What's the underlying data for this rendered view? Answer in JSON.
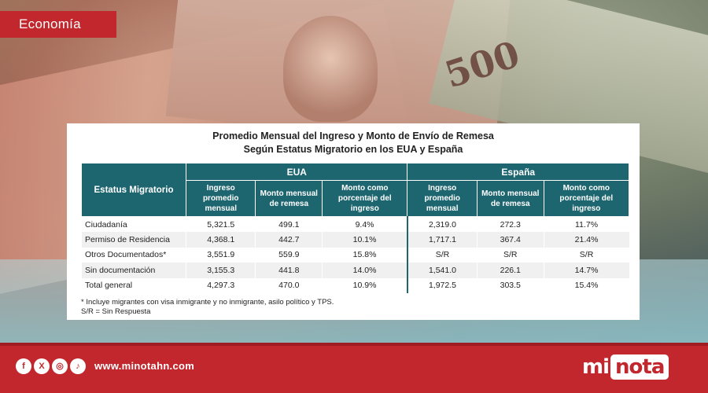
{
  "section_badge": "Economía",
  "card": {
    "title_line1": "Promedio Mensual del Ingreso y Monto de Envío de Remesa",
    "title_line2": "Según Estatus Migratorio en los EUA y España",
    "status_header": "Estatus Migratorio",
    "group_eua": "EUA",
    "group_espana": "España",
    "col_ingreso": "Ingreso promedio mensual",
    "col_monto": "Monto mensual de remesa",
    "col_porcentaje": "Monto como porcentaje del ingreso",
    "rows": [
      {
        "label": "Ciudadanía",
        "eua_ing": "5,321.5",
        "eua_mon": "499.1",
        "eua_pct": "9.4%",
        "es_ing": "2,319.0",
        "es_mon": "272.3",
        "es_pct": "11.7%"
      },
      {
        "label": "Permiso de Residencia",
        "eua_ing": "4,368.1",
        "eua_mon": "442.7",
        "eua_pct": "10.1%",
        "es_ing": "1,717.1",
        "es_mon": "367.4",
        "es_pct": "21.4%"
      },
      {
        "label": "Otros Documentados*",
        "eua_ing": "3,551.9",
        "eua_mon": "559.9",
        "eua_pct": "15.8%",
        "es_ing": "S/R",
        "es_mon": "S/R",
        "es_pct": "S/R"
      },
      {
        "label": "Sin documentación",
        "eua_ing": "3,155.3",
        "eua_mon": "441.8",
        "eua_pct": "14.0%",
        "es_ing": "1,541.0",
        "es_mon": "226.1",
        "es_pct": "14.7%"
      },
      {
        "label": "Total general",
        "eua_ing": "4,297.3",
        "eua_mon": "470.0",
        "eua_pct": "10.9%",
        "es_ing": "1,972.5",
        "es_mon": "303.5",
        "es_pct": "15.4%"
      }
    ],
    "note1": "* Incluye migrantes con visa inmigrante y no inmigrante, asilo político y TPS.",
    "note2": "S/R = Sin Respuesta"
  },
  "footer": {
    "url": "www.minotahn.com",
    "logo_mi": "mi",
    "logo_nota": "nota",
    "icons": [
      "facebook-icon",
      "x-icon",
      "instagram-icon",
      "tiktok-icon"
    ]
  },
  "colors": {
    "brand_red": "#c1272d",
    "table_header": "#1d6670"
  }
}
